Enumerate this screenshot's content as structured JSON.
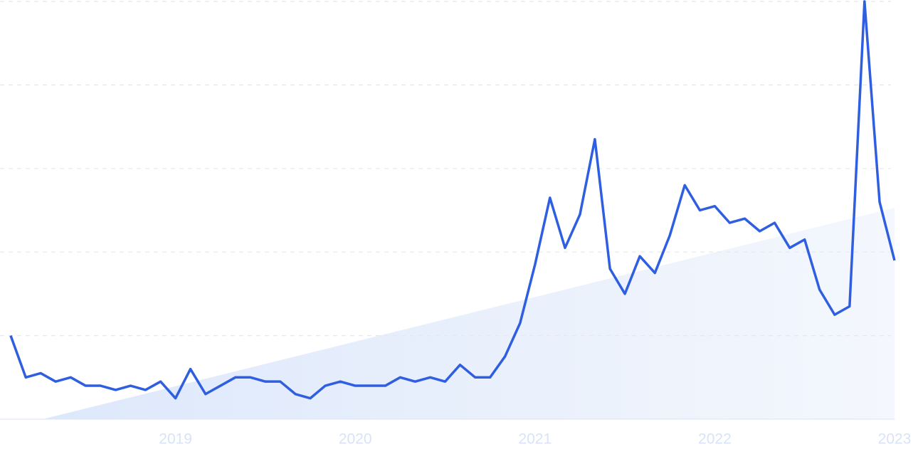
{
  "chart_data": {
    "type": "line",
    "x": [
      2018.083,
      2018.167,
      2018.25,
      2018.333,
      2018.417,
      2018.5,
      2018.583,
      2018.667,
      2018.75,
      2018.833,
      2018.917,
      2019,
      2019.083,
      2019.167,
      2019.25,
      2019.333,
      2019.417,
      2019.5,
      2019.583,
      2019.667,
      2019.75,
      2019.833,
      2019.917,
      2020,
      2020.083,
      2020.167,
      2020.25,
      2020.333,
      2020.417,
      2020.5,
      2020.583,
      2020.667,
      2020.75,
      2020.833,
      2020.917,
      2021,
      2021.083,
      2021.167,
      2021.25,
      2021.333,
      2021.417,
      2021.5,
      2021.583,
      2021.667,
      2021.75,
      2021.833,
      2021.917,
      2022,
      2022.083,
      2022.167,
      2022.25,
      2022.333,
      2022.417,
      2022.5,
      2022.583,
      2022.667,
      2022.75,
      2022.833,
      2022.917,
      2023
    ],
    "series": [
      {
        "color": "#2f5fe0",
        "values": [
          20,
          10,
          11,
          9,
          10,
          8,
          8,
          7,
          8,
          7,
          9,
          5,
          12,
          6,
          8,
          10,
          10,
          9,
          9,
          6,
          5,
          8,
          9,
          8,
          8,
          8,
          10,
          9,
          10,
          9,
          13,
          10,
          10,
          15,
          23,
          37,
          53,
          41,
          49,
          67,
          36,
          30,
          39,
          35,
          44,
          56,
          50,
          51,
          47,
          48,
          45,
          47,
          41,
          43,
          31,
          25,
          27,
          100,
          52,
          38
        ]
      }
    ],
    "xlim": [
      2018.083,
      2023
    ],
    "xticks": [
      2019,
      2020,
      2021,
      2022,
      2023
    ],
    "ylim": [
      0,
      100
    ],
    "yticks": [
      0,
      20,
      40,
      60,
      80,
      100
    ],
    "grid": true
  }
}
